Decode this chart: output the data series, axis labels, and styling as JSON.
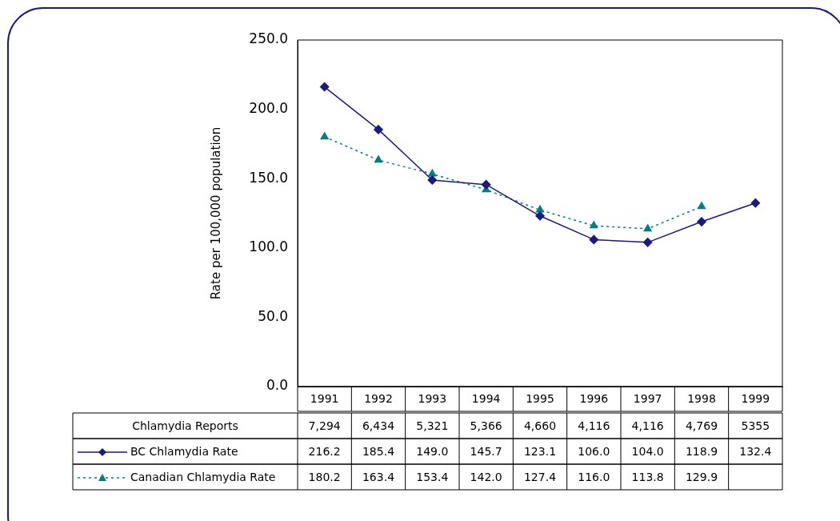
{
  "chart_data": {
    "type": "line",
    "ylabel": "Rate per 100,000 population",
    "categories": [
      "1991",
      "1992",
      "1993",
      "1994",
      "1995",
      "1996",
      "1997",
      "1998",
      "1999"
    ],
    "series": [
      {
        "name": "Chlamydia Reports",
        "values": [
          null,
          null,
          null,
          null,
          null,
          null,
          null,
          null,
          null
        ],
        "value_labels": [
          "7,294",
          "6,434",
          "5,321",
          "5,366",
          "4,660",
          "4,116",
          "4,116",
          "4,769",
          "5355"
        ]
      },
      {
        "name": "BC Chlamydia Rate",
        "color": "#1a1a80",
        "marker": "diamond",
        "line_style": "solid",
        "values": [
          216.2,
          185.4,
          149.0,
          145.7,
          123.1,
          106.0,
          104.0,
          118.9,
          132.4
        ],
        "value_labels": [
          "216.2",
          "185.4",
          "149.0",
          "145.7",
          "123.1",
          "106.0",
          "104.0",
          "118.9",
          "132.4"
        ]
      },
      {
        "name": "Canadian Chlamydia Rate",
        "color": "#008080",
        "marker": "triangle",
        "line_style": "dotted",
        "values": [
          180.2,
          163.4,
          153.4,
          142.0,
          127.4,
          116.0,
          113.8,
          129.9,
          null
        ],
        "value_labels": [
          "180.2",
          "163.4",
          "153.4",
          "142.0",
          "127.4",
          "116.0",
          "113.8",
          "129.9",
          null
        ]
      }
    ],
    "ylim": [
      0,
      250
    ],
    "yticks": [
      {
        "value": 0,
        "label": "0.0"
      },
      {
        "value": 50,
        "label": "50.0"
      },
      {
        "value": 100,
        "label": "100.0"
      },
      {
        "value": 150,
        "label": "150.0"
      },
      {
        "value": 200,
        "label": "200.0"
      },
      {
        "value": 250,
        "label": "250.0"
      }
    ],
    "grid": false,
    "legend": "bottom left"
  }
}
